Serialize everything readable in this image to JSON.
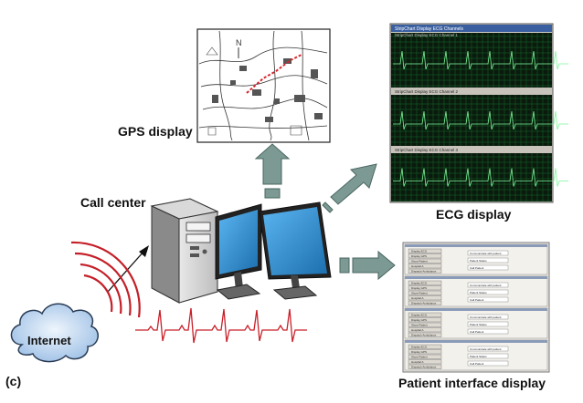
{
  "labels": {
    "gps": "GPS display",
    "ecg": "ECG display",
    "call_center": "Call center",
    "internet": "Internet",
    "panel": "(c)",
    "patient": "Patient interface display"
  },
  "ecg_window": {
    "title": "StripChart Display ECG Channels",
    "channels": [
      "StripChart Display ECG Channel 1",
      "StripChart Display ECG Channel 2",
      "StripChart Display ECG Channel 3"
    ]
  },
  "patient_window": {
    "panel_buttons": [
      "Display ECG",
      "Display GPS",
      "Show Patient",
      "Hospital A",
      "Dispatch Ambulance"
    ],
    "panel_fields": [
      "Communicate with patient",
      "Patient Status",
      "Call Patient"
    ]
  },
  "colors": {
    "arrow_fill": "#7c9a93",
    "arrow_stroke": "#4a6660",
    "screen_blue": "#2e8fd0",
    "ecg_green": "#1a9a3a",
    "wave_red": "#c8202a",
    "cloud_blue": "#a9c8ea"
  }
}
